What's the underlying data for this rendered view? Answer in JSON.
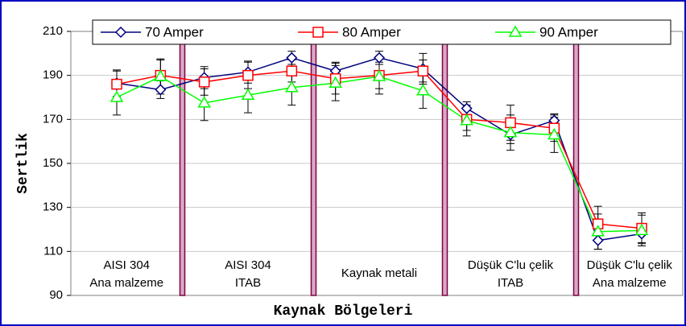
{
  "chart_data": {
    "type": "line",
    "x_label": "Kaynak Bölgeleri",
    "y_label": "Sertlik",
    "categories": [
      null,
      null,
      null,
      null,
      null,
      null,
      null,
      null,
      null,
      null,
      null,
      null,
      null
    ],
    "regions": [
      {
        "lines": [
          "AISI 304",
          "Ana malzeme"
        ],
        "from": 0,
        "to": 1
      },
      {
        "lines": [
          "AISI 304",
          "ITAB"
        ],
        "from": 2,
        "to": 4
      },
      {
        "lines": [
          "Kaynak metali"
        ],
        "from": 5,
        "to": 7
      },
      {
        "lines": [
          "Düşük C'lu çelik",
          "ITAB"
        ],
        "from": 8,
        "to": 10
      },
      {
        "lines": [
          "Düşük C'lu çelik",
          "Ana malzeme"
        ],
        "from": 11,
        "to": 12
      }
    ],
    "series": [
      {
        "name": "70 Amper",
        "color": "#000080",
        "marker": "diamond",
        "values": [
          186.5,
          183.5,
          189,
          191.5,
          198,
          192,
          198,
          193,
          175,
          163,
          169.5,
          115,
          118
        ],
        "errors": [
          6,
          4,
          5,
          5,
          3,
          4,
          3,
          7,
          3,
          4,
          3,
          4,
          4
        ]
      },
      {
        "name": "80 Amper",
        "color": "#ff0000",
        "marker": "square",
        "values": [
          186,
          190,
          187,
          190,
          192,
          188.5,
          190,
          192,
          170,
          168.5,
          166,
          122.5,
          120.5
        ],
        "errors": [
          6,
          7,
          6,
          6,
          5,
          7,
          6,
          5,
          5,
          8,
          6,
          8,
          7
        ]
      },
      {
        "name": "90 Amper",
        "color": "#00ff00",
        "marker": "triangle",
        "values": [
          180,
          189.5,
          177.5,
          181,
          184.5,
          186.5,
          189.5,
          183,
          169.5,
          164,
          163,
          119,
          119.5
        ],
        "errors": [
          8,
          8,
          8,
          8,
          8,
          8,
          8,
          8,
          7,
          8,
          8,
          8,
          7
        ]
      }
    ],
    "ylim": [
      90,
      210
    ],
    "yticks": [
      90,
      110,
      130,
      150,
      170,
      190,
      210
    ],
    "grid": true
  }
}
